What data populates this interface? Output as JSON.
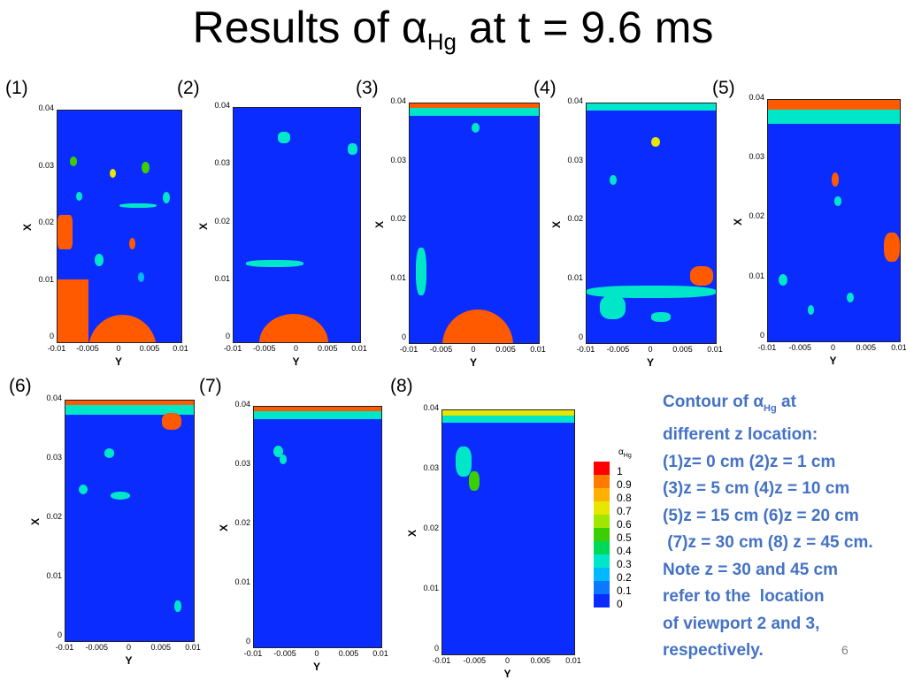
{
  "slide": {
    "title_prefix": "Results of α",
    "title_sub": "Hg",
    "title_suffix": "  at t = 9.6 ms",
    "page_number": "6"
  },
  "colors": {
    "background_field": "#0b2cff",
    "mercury_high": "#ff5a00",
    "caption_text": "#4472c4"
  },
  "panels": [
    {
      "label": "(1)",
      "z": "0 cm",
      "x_ticks": [
        "-0.01",
        "-0.005",
        "0",
        "0.005",
        "0.01"
      ],
      "y_ticks": [
        "0.04",
        "0.03",
        "0.02",
        "0.01",
        "0"
      ],
      "xlabel": "Y",
      "ylabel": "X"
    },
    {
      "label": "(2)",
      "z": "1 cm",
      "x_ticks": [
        "-0.01",
        "-0.005",
        "0",
        "0.005",
        "0.01"
      ],
      "y_ticks": [
        "0.04",
        "0.03",
        "0.02",
        "0.01",
        "0"
      ],
      "xlabel": "Y",
      "ylabel": "X"
    },
    {
      "label": "(3)",
      "z": "5 cm",
      "x_ticks": [
        "-0.01",
        "-0.005",
        "0",
        "0.005",
        "0.01"
      ],
      "y_ticks": [
        "0.04",
        "0.03",
        "0.02",
        "0.01",
        "0"
      ],
      "xlabel": "Y",
      "ylabel": "X"
    },
    {
      "label": "(4)",
      "z": "10 cm",
      "x_ticks": [
        "-0.01",
        "-0.005",
        "0",
        "0.005",
        "0.01"
      ],
      "y_ticks": [
        "0.04",
        "0.03",
        "0.02",
        "0.01",
        "0"
      ],
      "xlabel": "Y",
      "ylabel": "X"
    },
    {
      "label": "(5)",
      "z": "15 cm",
      "x_ticks": [
        "-0.01",
        "-0.005",
        "0",
        "0.005",
        "0.01"
      ],
      "y_ticks": [
        "0.04",
        "0.03",
        "0.02",
        "0.01",
        "0"
      ],
      "xlabel": "Y",
      "ylabel": "X"
    },
    {
      "label": "(6)",
      "z": "20 cm",
      "x_ticks": [
        "-0.01",
        "-0.005",
        "0",
        "0.005",
        "0.01"
      ],
      "y_ticks": [
        "0.04",
        "0.03",
        "0.02",
        "0.01",
        "0"
      ],
      "xlabel": "Y",
      "ylabel": "X"
    },
    {
      "label": "(7)",
      "z": "30 cm",
      "x_ticks": [
        "-0.01",
        "-0.005",
        "0",
        "0.005",
        "0.01"
      ],
      "y_ticks": [
        "0.04",
        "0.03",
        "0.02",
        "0.01",
        "0"
      ],
      "xlabel": "Y",
      "ylabel": "X"
    },
    {
      "label": "(8)",
      "z": "45 cm",
      "x_ticks": [
        "-0.01",
        "-0.005",
        "0",
        "0.005",
        "0.01"
      ],
      "y_ticks": [
        "0.04",
        "0.03",
        "0.02",
        "0.01",
        "0"
      ],
      "xlabel": "Y",
      "ylabel": "X"
    }
  ],
  "legend": {
    "title_prefix": "α",
    "title_sub": "Hg",
    "levels": [
      "1",
      "0.9",
      "0.8",
      "0.7",
      "0.6",
      "0.5",
      "0.4",
      "0.3",
      "0.2",
      "0.1",
      "0"
    ],
    "level_colors": [
      "#ff0000",
      "#ff7a00",
      "#ffb000",
      "#e6e600",
      "#9fe600",
      "#3ccf00",
      "#00d85a",
      "#00e6c8",
      "#00b8ff",
      "#0a78ff",
      "#0b2cff"
    ]
  },
  "caption": {
    "line1_prefix": "Contour of α",
    "line1_sub": "Hg",
    "line1_suffix": " at",
    "line2": "different z location:",
    "line3": "(1)z= 0 cm (2)z = 1 cm",
    "line4": "(3)z = 5 cm (4)z = 10 cm",
    "line5": "(5)z = 15 cm (6)z = 20 cm",
    "line6": " (7)z = 30 cm (8) z = 45 cm.",
    "line7": "Note z = 30 and 45 cm",
    "line8": "refer to the  location",
    "line9": "of viewport 2 and 3,",
    "line10": "respectively."
  }
}
